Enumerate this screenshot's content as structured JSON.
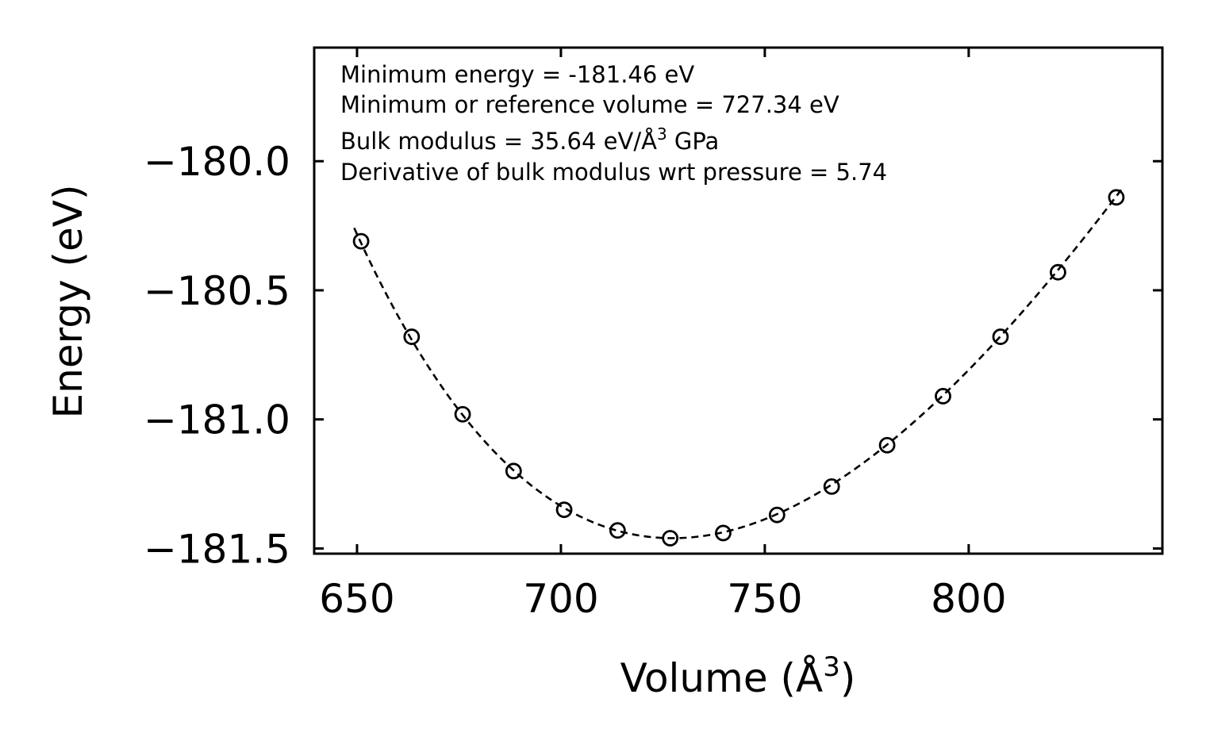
{
  "chart_data": {
    "type": "scatter",
    "title": "",
    "xlabel": "Volume (Å",
    "xlabel_sup": "3",
    "xlabel_end": ")",
    "ylabel": "Energy (eV)",
    "xlim": [
      639.5,
      847.5
    ],
    "ylim": [
      -181.52,
      -179.56
    ],
    "xticks": [
      650,
      700,
      750,
      800
    ],
    "xtick_labels": [
      "650",
      "700",
      "750",
      "800"
    ],
    "yticks": [
      -180.0,
      -180.5,
      -181.0,
      -181.5
    ],
    "ytick_labels": [
      "−180.0",
      "−180.5",
      "−181.0",
      "−181.5"
    ],
    "series": [
      {
        "name": "calculated",
        "style": "open-circle",
        "x": [
          651.0,
          663.4,
          675.9,
          688.4,
          700.8,
          713.9,
          726.8,
          739.8,
          753.0,
          766.4,
          780.0,
          793.7,
          807.8,
          821.9,
          836.2
        ],
        "y": [
          -180.31,
          -180.68,
          -180.98,
          -181.2,
          -181.35,
          -181.43,
          -181.46,
          -181.44,
          -181.37,
          -181.26,
          -181.1,
          -180.91,
          -180.68,
          -180.43,
          -180.14
        ]
      },
      {
        "name": "fit",
        "style": "dashed-line",
        "E0": -181.46,
        "V0": 727.34,
        "B": 35.64,
        "Bp": 5.74,
        "x_range": [
          649.3,
          838.0
        ]
      }
    ],
    "annotations": [
      {
        "text": "Minimum energy = -181.46 eV"
      },
      {
        "text": "Minimum or reference volume = 727.34 eV"
      },
      {
        "text": "Bulk modulus = 35.64 eV/Å",
        "sup": "3",
        "suffix": " GPa"
      },
      {
        "text": "Derivative of bulk modulus wrt pressure = 5.74"
      }
    ]
  }
}
